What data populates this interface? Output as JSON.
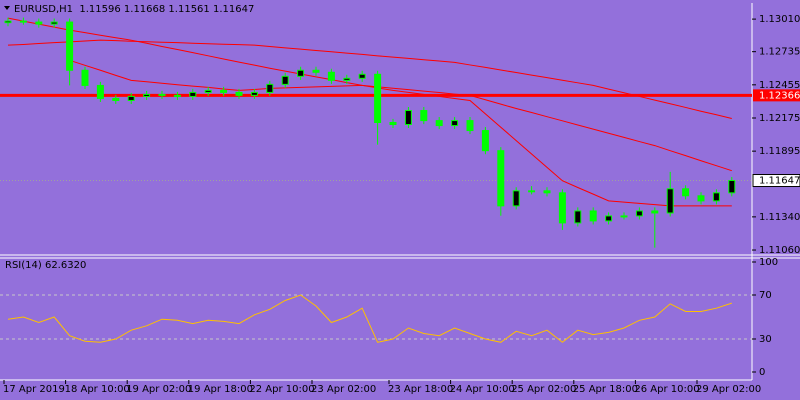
{
  "chart_data": [
    {
      "type": "candlestick",
      "title": "EURUSD,H1  1.11596 1.11668 1.11561 1.11647",
      "categories": [
        "17 Apr 2019",
        null,
        null,
        null,
        "18 Apr 10:00",
        null,
        null,
        null,
        "19 Apr 02:00",
        null,
        null,
        null,
        "19 Apr 18:00",
        null,
        null,
        null,
        "22 Apr 10:00",
        null,
        null,
        null,
        "23 Apr 02:00",
        null,
        null,
        null,
        null,
        "23 Apr 18:00",
        null,
        null,
        null,
        "24 Apr 10:00",
        null,
        null,
        null,
        "25 Apr 02:00",
        null,
        null,
        null,
        "25 Apr 18:00",
        null,
        null,
        null,
        "26 Apr 10:00",
        null,
        null,
        null,
        "29 Apr 02:00",
        null,
        null
      ],
      "open": [
        1.1298,
        1.12993,
        1.12985,
        1.12968,
        1.12985,
        1.12578,
        1.1245,
        1.1234,
        1.12323,
        1.12357,
        1.12374,
        1.12366,
        1.12357,
        1.12391,
        1.12408,
        1.12391,
        1.12366,
        1.12391,
        1.12459,
        1.12527,
        1.12578,
        1.12561,
        1.12493,
        1.1251,
        1.12544,
        1.12137,
        1.1212,
        1.12238,
        1.12153,
        1.12111,
        1.12153,
        1.12069,
        1.11899,
        1.11433,
        1.1156,
        1.1156,
        1.11543,
        1.11289,
        1.1139,
        1.11306,
        1.11348,
        1.11348,
        1.1139,
        1.11373,
        1.11577,
        1.11518,
        1.11475,
        1.11543
      ],
      "high": [
        1.13023,
        1.13023,
        1.13015,
        1.13015,
        1.13015,
        1.12608,
        1.1248,
        1.1237,
        1.12387,
        1.12404,
        1.12404,
        1.12396,
        1.12421,
        1.12438,
        1.12438,
        1.12421,
        1.12421,
        1.12489,
        1.12557,
        1.12608,
        1.12608,
        1.12591,
        1.1254,
        1.12574,
        1.12574,
        1.12167,
        1.12268,
        1.12268,
        1.12183,
        1.12183,
        1.12183,
        1.12099,
        1.11929,
        1.1159,
        1.116,
        1.1159,
        1.11573,
        1.1142,
        1.1142,
        1.11378,
        1.11378,
        1.1142,
        1.1142,
        1.1172,
        1.11607,
        1.11548,
        1.11573,
        1.11677
      ],
      "low": [
        1.1295,
        1.12963,
        1.12938,
        1.12938,
        1.1245,
        1.1242,
        1.1231,
        1.12293,
        1.12293,
        1.12327,
        1.12336,
        1.12327,
        1.12327,
        1.12361,
        1.12361,
        1.12336,
        1.12336,
        1.12361,
        1.12429,
        1.12497,
        1.12531,
        1.12463,
        1.12463,
        1.1248,
        1.1195,
        1.1209,
        1.1209,
        1.12123,
        1.12081,
        1.12081,
        1.12039,
        1.11869,
        1.1135,
        1.11403,
        1.1153,
        1.11513,
        1.1123,
        1.11259,
        1.11276,
        1.11276,
        1.11318,
        1.11318,
        1.1108,
        1.11343,
        1.11488,
        1.11445,
        1.11445,
        1.11513
      ],
      "close": [
        1.12993,
        1.12985,
        1.12968,
        1.12985,
        1.12578,
        1.1245,
        1.1234,
        1.12323,
        1.12357,
        1.12374,
        1.12366,
        1.12357,
        1.12391,
        1.12408,
        1.12391,
        1.12366,
        1.12391,
        1.12459,
        1.12527,
        1.12578,
        1.12561,
        1.12493,
        1.1251,
        1.12544,
        1.12137,
        1.1212,
        1.12238,
        1.12153,
        1.12111,
        1.12153,
        1.12069,
        1.11899,
        1.11433,
        1.1156,
        1.1156,
        1.11543,
        1.11289,
        1.1139,
        1.11306,
        1.11348,
        1.11348,
        1.1139,
        1.11373,
        1.11577,
        1.11518,
        1.11475,
        1.11543,
        1.11647
      ],
      "candle_color": "#00ff00",
      "series": [
        {
          "color": "#ff0000",
          "values": [
            1.1279,
            1.12796,
            1.12804,
            1.12811,
            1.12818,
            1.12825,
            1.12832,
            1.12828,
            1.12823,
            1.12819,
            1.12815,
            1.12811,
            1.12806,
            1.12802,
            1.12798,
            1.12794,
            1.1279,
            1.12779,
            1.12767,
            1.12756,
            1.12745,
            1.12734,
            1.12723,
            1.12712,
            1.127,
            1.12689,
            1.12678,
            1.12667,
            1.12656,
            1.12645,
            1.12623,
            1.12602,
            1.1258,
            1.12559,
            1.12537,
            1.12516,
            1.12494,
            1.12472,
            1.1245,
            1.12419,
            1.12388,
            1.12357,
            1.12326,
            1.12295,
            1.12264,
            1.12232,
            1.12202,
            1.12171
          ]
        },
        {
          "color": "#ff0000",
          "values": [
            1.13018,
            1.12993,
            1.12968,
            1.12942,
            1.12917,
            1.12896,
            1.12874,
            1.12853,
            1.12832,
            1.12806,
            1.12779,
            1.12753,
            1.12727,
            1.127,
            1.12673,
            1.12647,
            1.12621,
            1.12595,
            1.12571,
            1.12546,
            1.12522,
            1.12499,
            1.12474,
            1.1245,
            1.12438,
            1.12426,
            1.12414,
            1.12402,
            1.1239,
            1.12377,
            1.12366,
            1.12329,
            1.12292,
            1.12255,
            1.12221,
            1.12186,
            1.12151,
            1.12116,
            1.12081,
            1.12046,
            1.12011,
            1.11976,
            1.11942,
            1.11899,
            1.11857,
            1.11814,
            1.11772,
            1.1173
          ]
        },
        {
          "color": "#ff0000",
          "values": [
            null,
            null,
            null,
            null,
            1.12662,
            1.1262,
            1.12578,
            1.12535,
            1.12493,
            1.12481,
            1.12468,
            1.12456,
            1.12444,
            1.12433,
            1.1242,
            1.12408,
            1.12416,
            1.12425,
            1.12429,
            1.12433,
            1.12438,
            1.12442,
            1.12446,
            1.1245,
            1.12429,
            1.12408,
            1.12391,
            1.12374,
            1.12357,
            1.1234,
            1.12323,
            1.1221,
            1.12097,
            1.11984,
            1.11871,
            1.11758,
            1.11645,
            1.11588,
            1.11532,
            1.11475,
            1.11464,
            1.11454,
            1.11443,
            1.11433,
            1.11433,
            1.11433,
            1.11433,
            1.11433
          ]
        }
      ],
      "hline": {
        "value": 1.12366,
        "color": "#ff0000"
      },
      "last_price": 1.11647,
      "ylim": [
        1.11018,
        1.13146
      ],
      "yticks": [
        {
          "value": 1.1301,
          "label": "1.13010"
        },
        1.12735,
        1.12455,
        1.12175,
        1.11895,
        {
          "value": 1.1134,
          "label": "1.11340"
        },
        {
          "value": 1.1106,
          "label": "1.11060"
        }
      ]
    },
    {
      "type": "line",
      "title": "RSI(14) 62.6320",
      "color": "#ffc000",
      "values": [
        48,
        50,
        45,
        50,
        33,
        28,
        27,
        30,
        38,
        42,
        48,
        47,
        44,
        47,
        46,
        44,
        52,
        57,
        65,
        70,
        60,
        45,
        50,
        58,
        27,
        30,
        40,
        35,
        33,
        40,
        35,
        30,
        27,
        37,
        33,
        38,
        27,
        38,
        34,
        36,
        40,
        47,
        50,
        62,
        55,
        55,
        58,
        62.632
      ],
      "ylim": [
        0,
        100
      ],
      "yticks": [
        100,
        70,
        30,
        0
      ],
      "levels": [
        70,
        30
      ]
    }
  ]
}
